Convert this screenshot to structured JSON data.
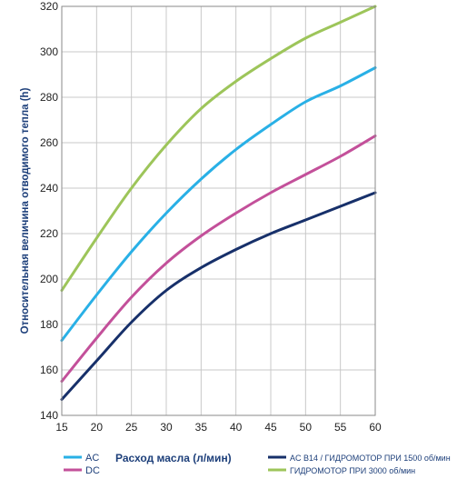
{
  "chart_data": {
    "type": "line",
    "xlabel": "Расход масла (л/мин)",
    "ylabel": "Относительная величина отводимого тепла (h)",
    "xlim": [
      15,
      60
    ],
    "ylim": [
      140,
      320
    ],
    "x_ticks": [
      15,
      20,
      25,
      30,
      35,
      40,
      45,
      50,
      55,
      60
    ],
    "y_ticks": [
      140,
      160,
      180,
      200,
      220,
      240,
      260,
      280,
      300,
      320
    ],
    "grid": true,
    "legend_position": "bottom",
    "x": [
      15,
      20,
      25,
      30,
      35,
      40,
      45,
      50,
      55,
      60
    ],
    "series": [
      {
        "name": "ГИДРОМОТОР ПРИ 3000 об/мин",
        "color": "#9dc55a",
        "values": [
          195,
          218,
          240,
          259,
          275,
          287,
          297,
          306,
          313,
          320
        ]
      },
      {
        "name": "AC",
        "color": "#29b0e6",
        "values": [
          173,
          193,
          212,
          229,
          244,
          257,
          268,
          278,
          285,
          293
        ]
      },
      {
        "name": "DC",
        "color": "#c3509a",
        "values": [
          155,
          174,
          192,
          207,
          219,
          229,
          238,
          246,
          254,
          263
        ]
      },
      {
        "name": "AC B14 / ГИДРОМОТОР ПРИ 1500 об/мин",
        "color": "#17306a",
        "values": [
          147,
          164,
          181,
          195,
          205,
          213,
          220,
          226,
          232,
          238
        ]
      }
    ],
    "legend": {
      "left": [
        {
          "label": "AC",
          "color": "#29b0e6"
        },
        {
          "label": "DC",
          "color": "#c3509a"
        }
      ],
      "right": [
        {
          "label": "AC B14 / ГИДРОМОТОР ПРИ 1500 об/мин",
          "color": "#17306a"
        },
        {
          "label": "ГИДРОМОТОР ПРИ 3000 об/мин",
          "color": "#9dc55a"
        }
      ]
    }
  }
}
